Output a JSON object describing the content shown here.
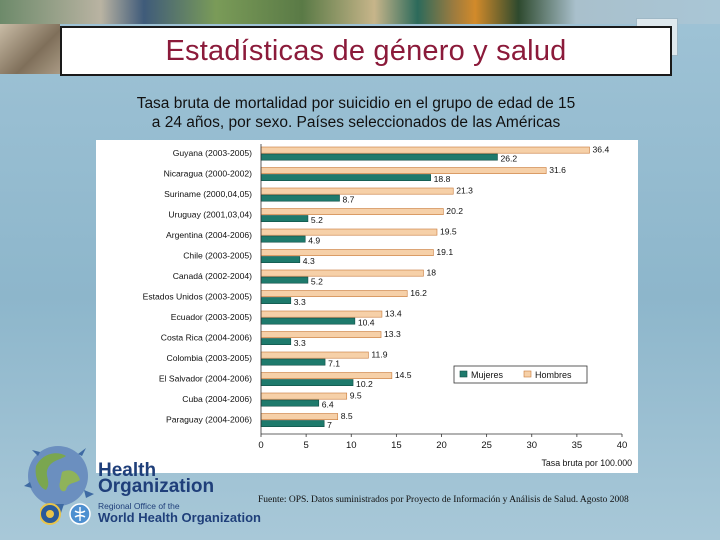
{
  "header": {
    "title": "Estadísticas de género y salud"
  },
  "subtitle": {
    "line1": "Tasa bruta de mortalidad por suicidio en el grupo de edad de 15",
    "line2": "a 24 años, por sexo. Países seleccionados de las Américas"
  },
  "chart_data": {
    "type": "bar",
    "orientation": "horizontal",
    "title": "Tasa bruta de mortalidad por suicidio en el grupo de edad de 15 a 24 años, por sexo. Países seleccionados de las Américas",
    "xlabel": "Tasa bruta por 100.000",
    "ylabel": "",
    "xlim": [
      0,
      40
    ],
    "xticks": [
      0,
      5,
      10,
      15,
      20,
      25,
      30,
      35,
      40
    ],
    "grid": false,
    "legend_position": "right",
    "categories": [
      "Guyana (2003-2005)",
      "Nicaragua (2000-2002)",
      "Suriname (2000,04,05)",
      "Uruguay (2001,03,04)",
      "Argentina (2004-2006)",
      "Chile (2003-2005)",
      "Canadá (2002-2004)",
      "Estados Unidos (2003-2005)",
      "Ecuador (2003-2005)",
      "Costa Rica (2004-2006)",
      "Colombia (2003-2005)",
      "El Salvador (2004-2006)",
      "Cuba (2004-2006)",
      "Paraguay (2004-2006)"
    ],
    "series": [
      {
        "name": "Hombres",
        "color": "#f6d0a8",
        "values": [
          36.4,
          31.6,
          21.3,
          20.2,
          19.5,
          19.1,
          18.0,
          16.2,
          13.4,
          13.3,
          11.9,
          14.5,
          9.5,
          8.5
        ]
      },
      {
        "name": "Mujeres",
        "color": "#1e7a6c",
        "values": [
          26.2,
          18.8,
          8.7,
          5.2,
          4.9,
          4.3,
          5.2,
          3.3,
          10.4,
          3.3,
          7.1,
          10.2,
          6.4,
          7.0
        ]
      }
    ],
    "legend": [
      "Mujeres",
      "Hombres"
    ]
  },
  "footer": {
    "org_line1": "Health",
    "org_line2": "Organization",
    "paho_small": "Regional Office of the",
    "paho_big": "World Health Organization",
    "source": "Fuente: OPS. Datos suministrados por Proyecto de Información y Análisis de Salud. Agosto 2008"
  }
}
